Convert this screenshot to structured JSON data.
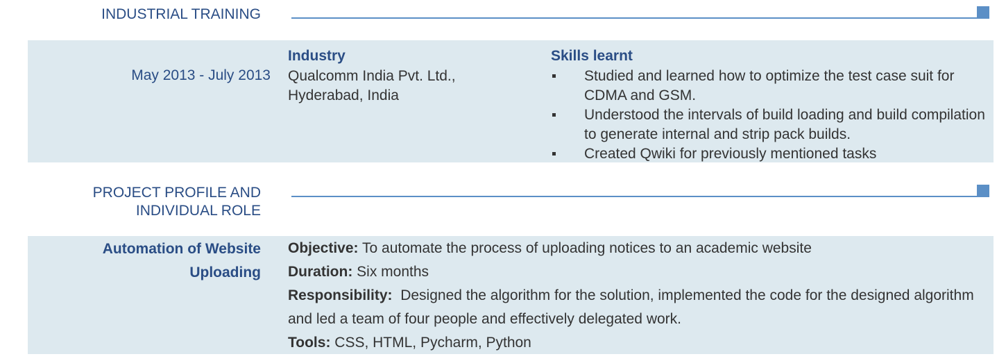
{
  "training": {
    "section_title": "INDUSTRIAL TRAINING",
    "date_range": "May 2013 - July 2013",
    "industry_heading": "Industry",
    "company_line1": "Qualcomm India Pvt. Ltd.,",
    "company_line2": "Hyderabad, India",
    "skills_heading": "Skills learnt",
    "skills": [
      "Studied and learned how to optimize the test case suit for CDMA and GSM.",
      "Understood the intervals of build loading and build compilation to generate internal and strip pack builds.",
      "Created Qwiki for previously mentioned tasks"
    ]
  },
  "project": {
    "section_title_line1": "PROJECT PROFILE AND",
    "section_title_line2": "INDIVIDUAL ROLE",
    "name_line1": "Automation of Website",
    "name_line2": "Uploading",
    "objective_label": "Objective:",
    "objective_text": "To automate the process of uploading notices to an academic website",
    "duration_label": "Duration:",
    "duration_text": "Six months",
    "responsibility_label": "Responsibility:",
    "responsibility_text": "Designed the algorithm for the solution, implemented the code for the designed algorithm and led a team of four people and effectively delegated work.",
    "tools_label": "Tools:",
    "tools_text": "CSS, HTML, Pycharm, Python"
  },
  "colors": {
    "accent": "#5b8fc6",
    "heading": "#2a4d85",
    "band": "#dde9ef",
    "text": "#333333"
  }
}
